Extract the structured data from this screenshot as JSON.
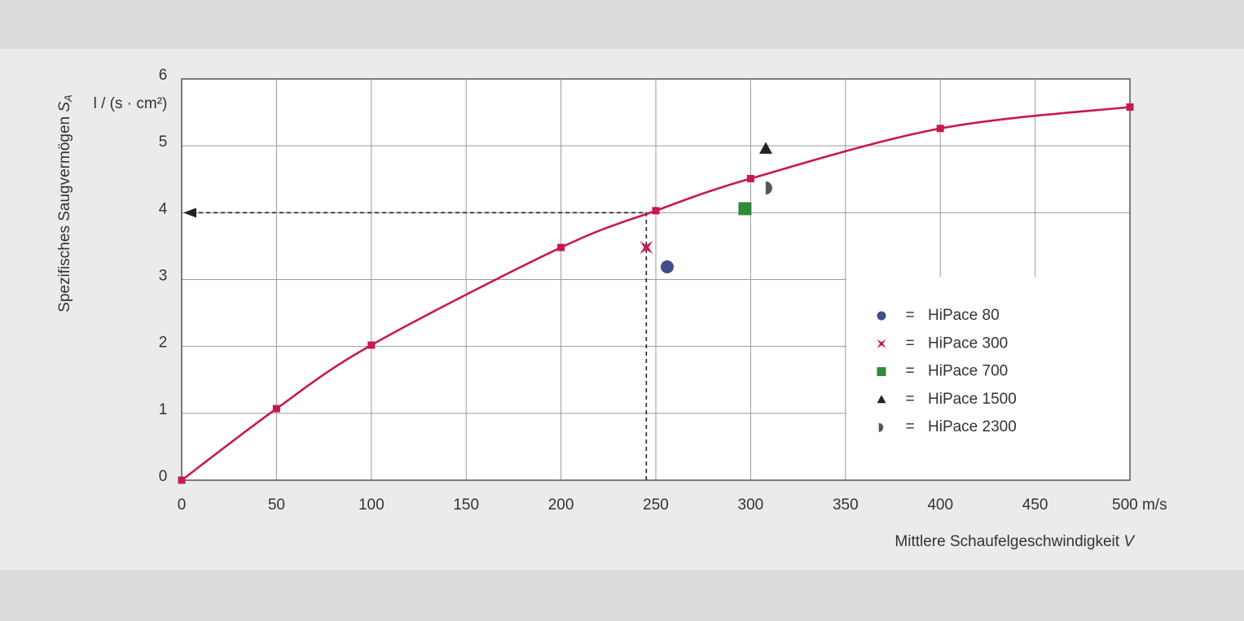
{
  "chart_data": {
    "type": "scatter",
    "ylabel": "Spezifisches Saugvermögen",
    "ylabel_symbol": "S",
    "ylabel_subscript": "A",
    "yunit": "l / (s · cm²)",
    "xlabel": "Mittlere Schaufelgeschwindigkeit",
    "xlabel_symbol": "V",
    "xlim": [
      0,
      500
    ],
    "ylim": [
      0,
      6
    ],
    "xticks": [
      0,
      50,
      100,
      150,
      200,
      250,
      300,
      350,
      400,
      450,
      {
        "value": 500,
        "label": "500 m/s"
      }
    ],
    "yticks": [
      0,
      1,
      2,
      3,
      4,
      5,
      6
    ],
    "grid": true,
    "legend": "lower right",
    "legend_separator": "=",
    "curve": {
      "color": "#c8194b",
      "marker": "square",
      "x": [
        0,
        50,
        100,
        200,
        250,
        300,
        400,
        500
      ],
      "values": [
        0,
        1.07,
        2.02,
        3.48,
        4.03,
        4.51,
        5.26,
        5.58
      ]
    },
    "guide": {
      "x": 245,
      "y": 4
    },
    "series": [
      {
        "name": "HiPace 80",
        "color": "#3f4f87",
        "marker": "circle",
        "x": [
          256
        ],
        "values": [
          3.19
        ]
      },
      {
        "name": "HiPace 300",
        "color": "#c8194b",
        "marker": "star",
        "x": [
          245
        ],
        "values": [
          3.48
        ]
      },
      {
        "name": "HiPace 700",
        "color": "#2f8a3c",
        "marker": "square",
        "x": [
          297
        ],
        "values": [
          4.06
        ]
      },
      {
        "name": "HiPace 1500",
        "color": "#222222",
        "marker": "triangle",
        "x": [
          308
        ],
        "values": [
          4.96
        ]
      },
      {
        "name": "HiPace 2300",
        "color": "#555555",
        "marker": "half",
        "x": [
          310
        ],
        "values": [
          4.37
        ]
      }
    ]
  }
}
